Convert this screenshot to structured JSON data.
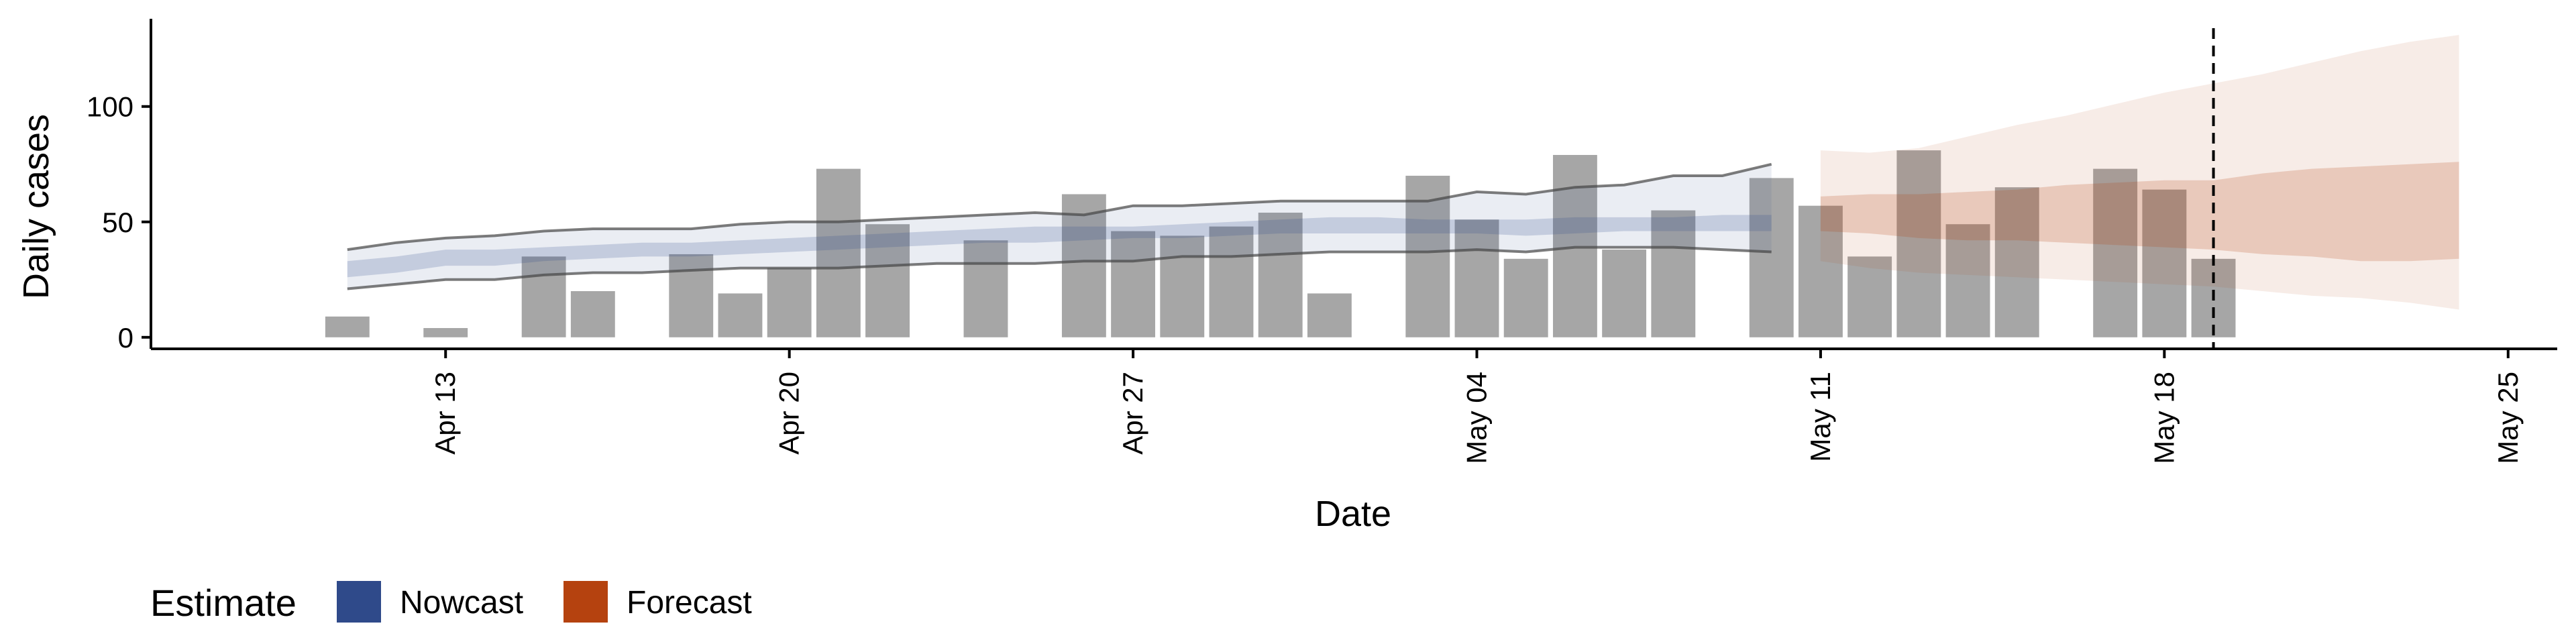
{
  "chart_data": {
    "type": "bar",
    "xlabel": "Date",
    "ylabel": "Daily cases",
    "ylim": [
      -5,
      138
    ],
    "xlim": [
      "2020-04-07",
      "2020-05-26"
    ],
    "y_ticks": [
      0,
      50,
      100
    ],
    "x_ticks": [
      {
        "date": "2020-04-13",
        "label": "Apr 13"
      },
      {
        "date": "2020-04-20",
        "label": "Apr 20"
      },
      {
        "date": "2020-04-27",
        "label": "Apr 27"
      },
      {
        "date": "2020-05-04",
        "label": "May 04"
      },
      {
        "date": "2020-05-11",
        "label": "May 11"
      },
      {
        "date": "2020-05-18",
        "label": "May 18"
      },
      {
        "date": "2020-05-25",
        "label": "May 25"
      }
    ],
    "grid": false,
    "reference_line": {
      "date": "2020-05-19",
      "style": "dashed"
    },
    "bars": {
      "color": "#a6a6a6",
      "dates": [
        "2020-04-11",
        "2020-04-12",
        "2020-04-13",
        "2020-04-14",
        "2020-04-15",
        "2020-04-16",
        "2020-04-17",
        "2020-04-18",
        "2020-04-19",
        "2020-04-20",
        "2020-04-21",
        "2020-04-22",
        "2020-04-23",
        "2020-04-24",
        "2020-04-25",
        "2020-04-26",
        "2020-04-27",
        "2020-04-28",
        "2020-04-29",
        "2020-04-30",
        "2020-05-01",
        "2020-05-02",
        "2020-05-03",
        "2020-05-04",
        "2020-05-05",
        "2020-05-06",
        "2020-05-07",
        "2020-05-08",
        "2020-05-09",
        "2020-05-10",
        "2020-05-11",
        "2020-05-12",
        "2020-05-13",
        "2020-05-14",
        "2020-05-15",
        "2020-05-16",
        "2020-05-17",
        "2020-05-18",
        "2020-05-19"
      ],
      "values": [
        9,
        0,
        4,
        0,
        35,
        20,
        0,
        36,
        19,
        30,
        73,
        49,
        0,
        42,
        0,
        62,
        46,
        44,
        48,
        54,
        19,
        0,
        70,
        51,
        34,
        79,
        38,
        55,
        0,
        69,
        57,
        35,
        81,
        49,
        65,
        0,
        73,
        64,
        34
      ]
    },
    "series": [
      {
        "name": "Nowcast",
        "color": "#2f4a8a",
        "dates": [
          "2020-04-11",
          "2020-04-12",
          "2020-04-13",
          "2020-04-14",
          "2020-04-15",
          "2020-04-16",
          "2020-04-17",
          "2020-04-18",
          "2020-04-19",
          "2020-04-20",
          "2020-04-21",
          "2020-04-22",
          "2020-04-23",
          "2020-04-24",
          "2020-04-25",
          "2020-04-26",
          "2020-04-27",
          "2020-04-28",
          "2020-04-29",
          "2020-04-30",
          "2020-05-01",
          "2020-05-02",
          "2020-05-03",
          "2020-05-04",
          "2020-05-05",
          "2020-05-06",
          "2020-05-07",
          "2020-05-08",
          "2020-05-09",
          "2020-05-10"
        ],
        "inner_lower": [
          26,
          28,
          31,
          31,
          33,
          34,
          35,
          35,
          36,
          37,
          38,
          39,
          40,
          41,
          41,
          42,
          43,
          43,
          44,
          45,
          45,
          45,
          45,
          45,
          44,
          45,
          46,
          46,
          46,
          46
        ],
        "inner_upper": [
          33,
          35,
          38,
          38,
          39,
          40,
          41,
          41,
          42,
          43,
          44,
          45,
          46,
          47,
          48,
          48,
          48,
          49,
          50,
          51,
          52,
          52,
          51,
          51,
          51,
          52,
          52,
          52,
          53,
          53
        ],
        "outer_lower": [
          21,
          23,
          25,
          25,
          27,
          28,
          28,
          29,
          30,
          30,
          30,
          31,
          32,
          32,
          32,
          33,
          33,
          35,
          35,
          36,
          37,
          37,
          37,
          38,
          37,
          39,
          39,
          39,
          38,
          37
        ],
        "outer_upper": [
          38,
          41,
          43,
          44,
          46,
          47,
          47,
          47,
          49,
          50,
          50,
          51,
          52,
          53,
          54,
          53,
          57,
          57,
          58,
          59,
          59,
          59,
          59,
          63,
          62,
          65,
          66,
          70,
          70,
          75
        ]
      },
      {
        "name": "Forecast",
        "color": "#b5420f",
        "dates": [
          "2020-05-11",
          "2020-05-12",
          "2020-05-13",
          "2020-05-14",
          "2020-05-15",
          "2020-05-16",
          "2020-05-17",
          "2020-05-18",
          "2020-05-19",
          "2020-05-20",
          "2020-05-21",
          "2020-05-22",
          "2020-05-23",
          "2020-05-24"
        ],
        "inner_lower": [
          46,
          45,
          43,
          42,
          42,
          41,
          40,
          39,
          38,
          36,
          35,
          33,
          33,
          34
        ],
        "inner_upper": [
          61,
          62,
          62,
          63,
          64,
          66,
          67,
          68,
          68,
          71,
          73,
          74,
          75,
          76
        ],
        "outer_lower": [
          33,
          30,
          28,
          27,
          26,
          25,
          24,
          23,
          22,
          20,
          18,
          17,
          15,
          12
        ],
        "outer_upper": [
          81,
          80,
          82,
          87,
          92,
          96,
          101,
          106,
          110,
          114,
          119,
          124,
          128,
          131
        ]
      }
    ],
    "legend": {
      "title": "Estimate",
      "placement": "bottom-left",
      "items": [
        {
          "label": "Nowcast",
          "color": "#2f4a8a"
        },
        {
          "label": "Forecast",
          "color": "#b5420f"
        }
      ]
    }
  }
}
